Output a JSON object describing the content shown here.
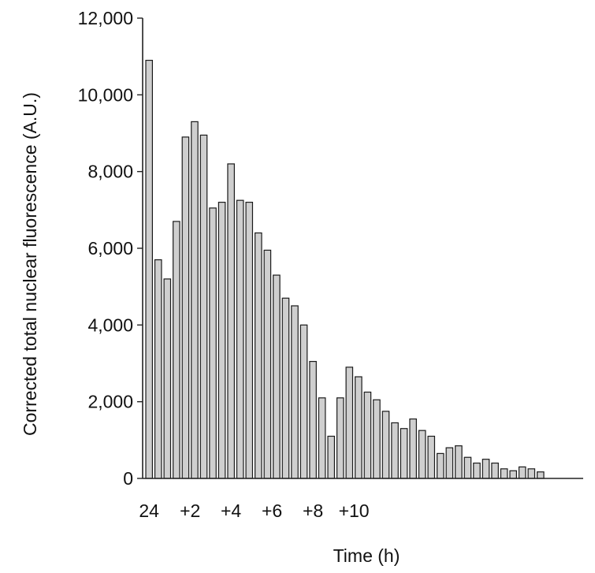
{
  "chart_data": {
    "type": "bar",
    "title": "",
    "xlabel": "Time (h)",
    "ylabel": "Corrected total nuclear fluorescence (A.U.)",
    "ylim": [
      0,
      12000
    ],
    "yticks": [
      0,
      2000,
      4000,
      6000,
      8000,
      10000,
      12000
    ],
    "ytick_labels": [
      "0",
      "2,000",
      "4,000",
      "6,000",
      "8,000",
      "10,000",
      "12,000"
    ],
    "xtick_labels": [
      "24",
      "+2",
      "+4",
      "+6",
      "+8",
      "+10"
    ],
    "xtick_bar_positions": [
      0,
      4.5,
      9,
      13.5,
      18,
      22.5
    ],
    "grid": false,
    "legend": "none",
    "bar_color": "#cfcfcf",
    "values": [
      10900,
      5700,
      5200,
      6700,
      8900,
      9300,
      8950,
      7050,
      7200,
      8200,
      7250,
      7200,
      6400,
      5950,
      5300,
      4700,
      4500,
      4000,
      3050,
      2100,
      1100,
      2100,
      2900,
      2650,
      2250,
      2050,
      1750,
      1450,
      1300,
      1550,
      1250,
      1100,
      650,
      800,
      850,
      550,
      400,
      500,
      400,
      250,
      200,
      300,
      250,
      170
    ]
  }
}
